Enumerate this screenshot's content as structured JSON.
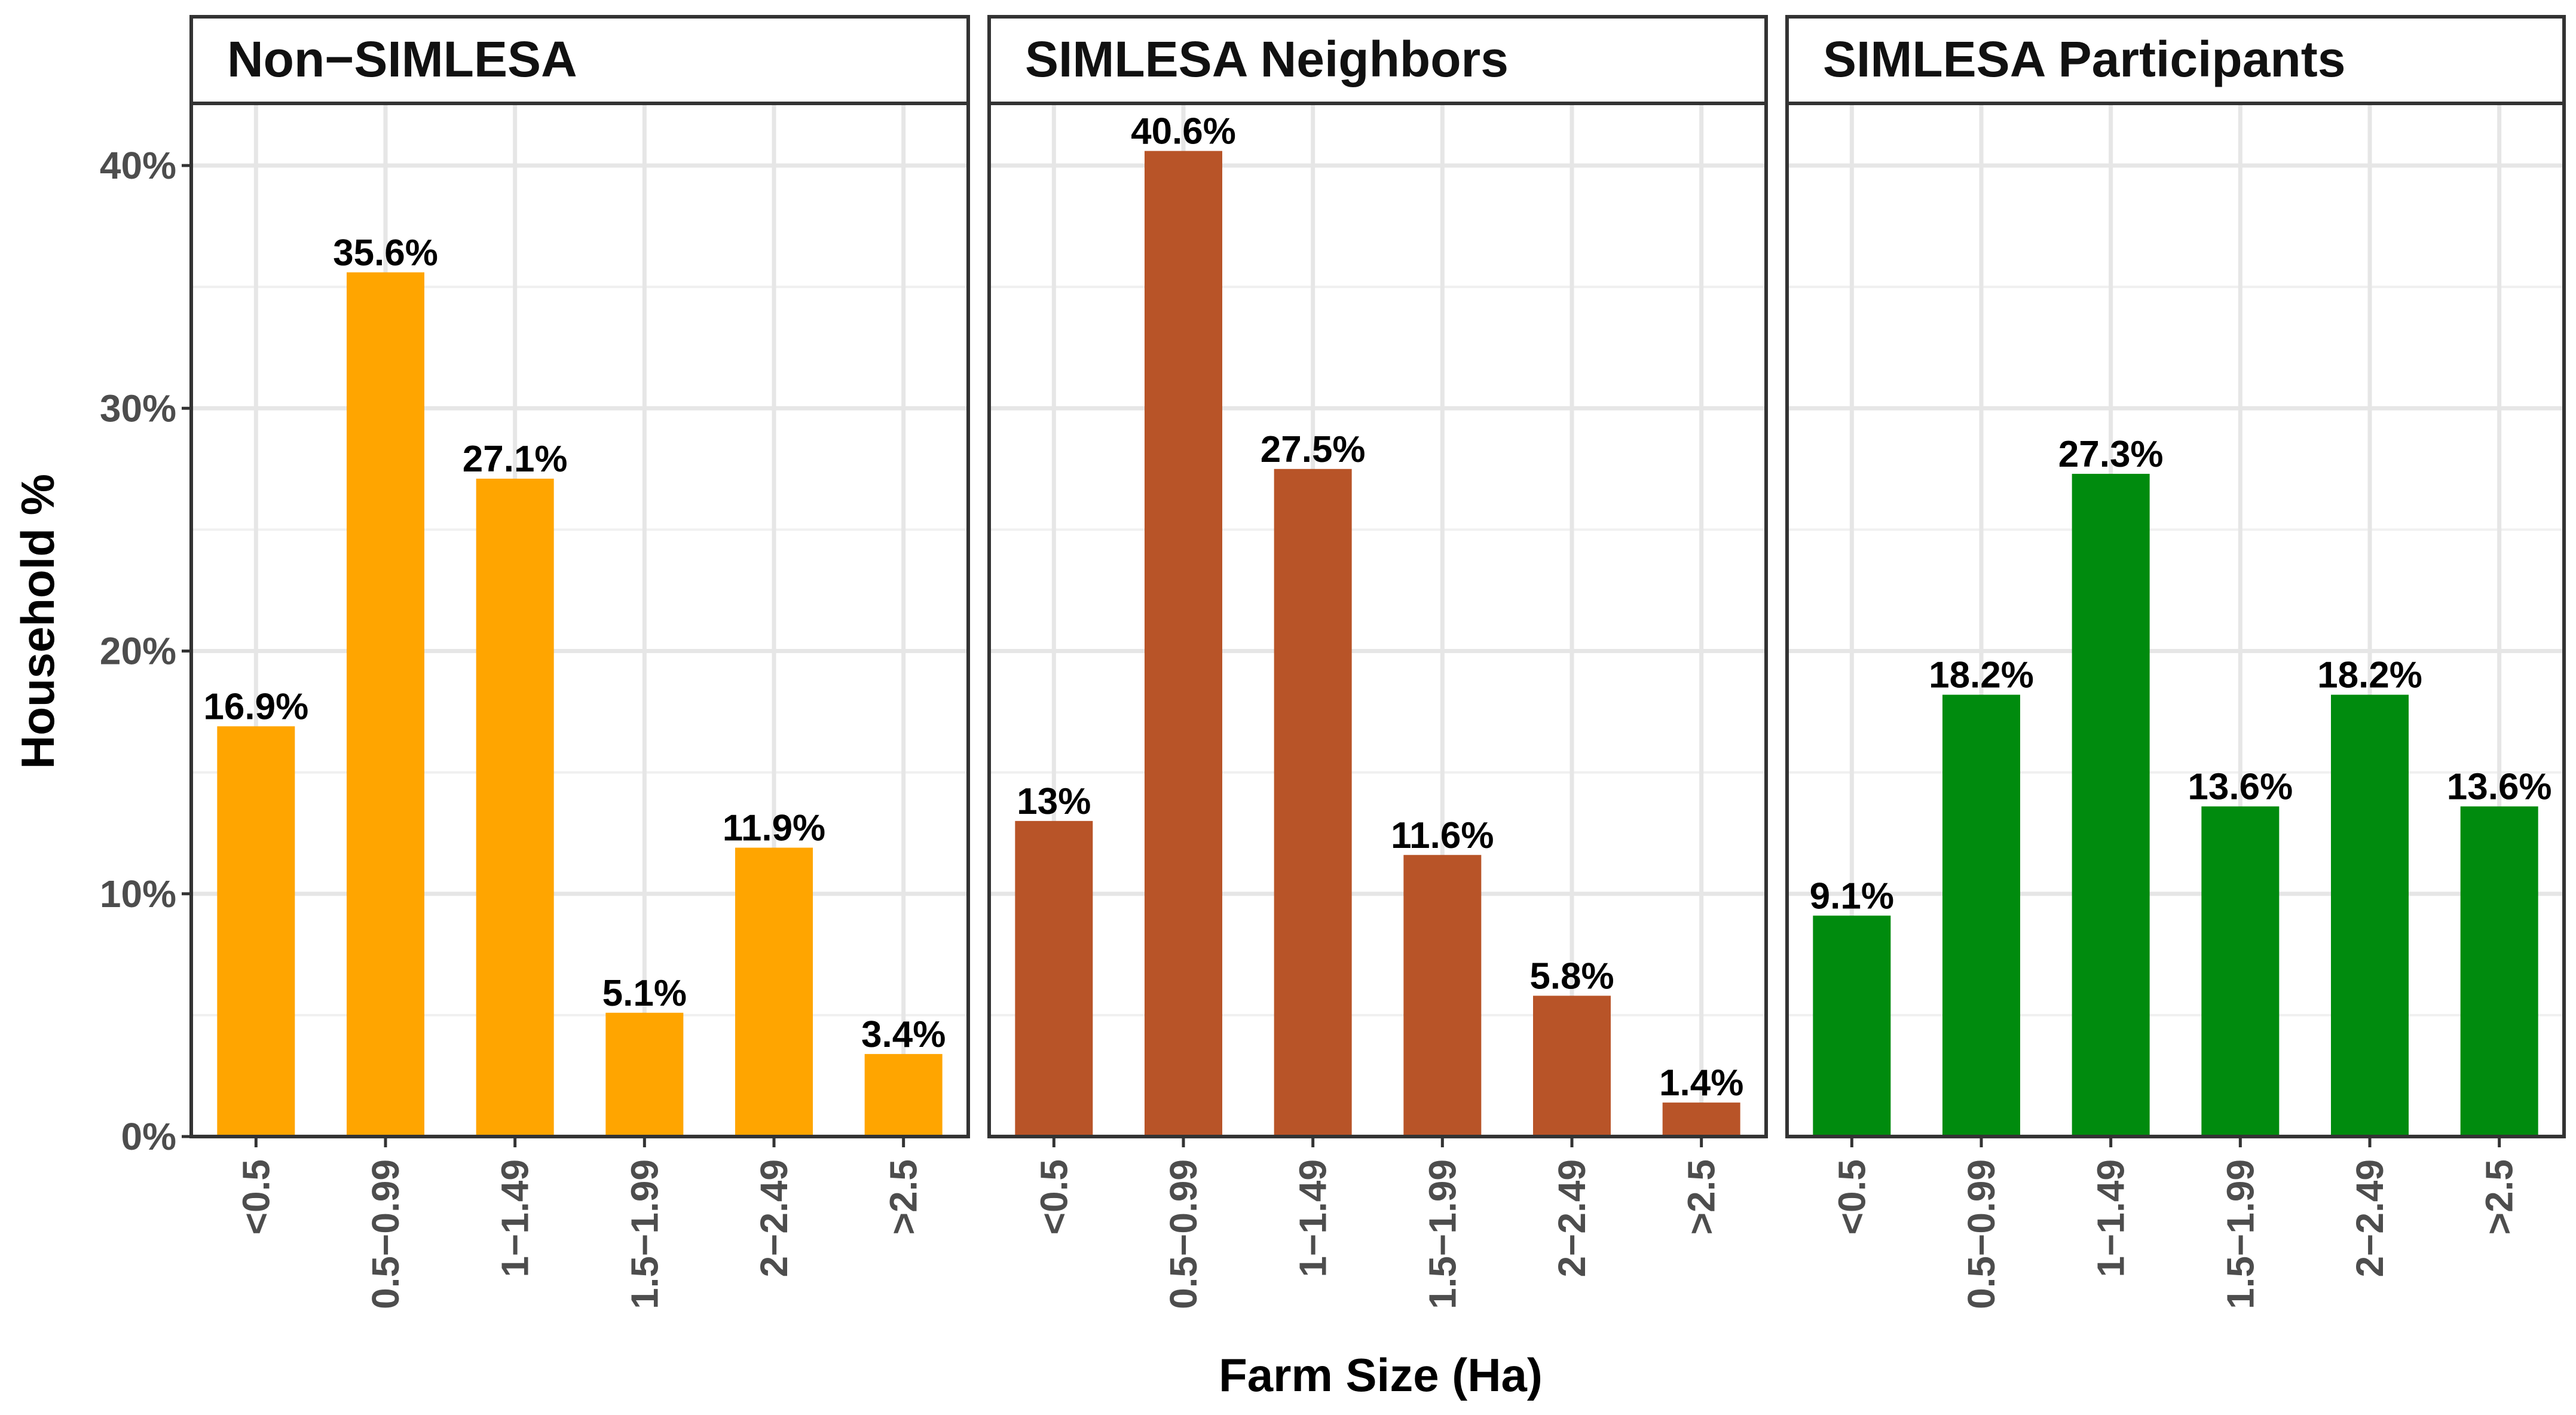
{
  "chart_data": {
    "type": "bar",
    "xlabel": "Farm Size (Ha)",
    "ylabel": "Household %",
    "ylim": [
      0,
      0.43
    ],
    "y_ticks": [
      0,
      0.1,
      0.2,
      0.3,
      0.4
    ],
    "y_tick_labels": [
      "0%",
      "10%",
      "20%",
      "30%",
      "40%"
    ],
    "categories": [
      "<0.5",
      "0.5−0.99",
      "1−1.49",
      "1.5−1.99",
      "2−2.49",
      ">2.5"
    ],
    "grid": true,
    "panels": [
      {
        "title": "Non−SIMLESA",
        "color": "#FFA500",
        "values": [
          0.169,
          0.356,
          0.271,
          0.051,
          0.119,
          0.034
        ],
        "labels": [
          "16.9%",
          "35.6%",
          "27.1%",
          "5.1%",
          "11.9%",
          "3.4%"
        ]
      },
      {
        "title": "SIMLESA Neighbors",
        "color": "#B85428",
        "values": [
          0.13,
          0.406,
          0.275,
          0.116,
          0.058,
          0.014
        ],
        "labels": [
          "13%",
          "40.6%",
          "27.5%",
          "11.6%",
          "5.8%",
          "1.4%"
        ]
      },
      {
        "title": "SIMLESA Participants",
        "color": "#008B0E",
        "values": [
          0.091,
          0.182,
          0.273,
          0.136,
          0.182,
          0.136
        ],
        "labels": [
          "9.1%",
          "18.2%",
          "27.3%",
          "13.6%",
          "18.2%",
          "13.6%"
        ]
      }
    ]
  }
}
